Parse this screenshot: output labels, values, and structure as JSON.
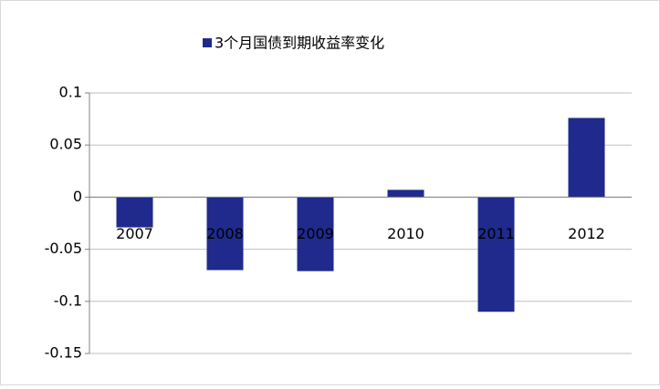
{
  "chart_data": {
    "type": "bar",
    "categories": [
      "2007",
      "2008",
      "2009",
      "2010",
      "2011",
      "2012"
    ],
    "series": [
      {
        "name": "3个月国债到期收益率变化",
        "color": "#1f2a8c",
        "values": [
          -0.029,
          -0.07,
          -0.071,
          0.007,
          -0.11,
          0.076
        ]
      }
    ],
    "ylim": [
      -0.15,
      0.1
    ],
    "yticks": [
      -0.15,
      -0.1,
      -0.05,
      0,
      0.05,
      0.1
    ],
    "grid": true,
    "legend": "top"
  }
}
